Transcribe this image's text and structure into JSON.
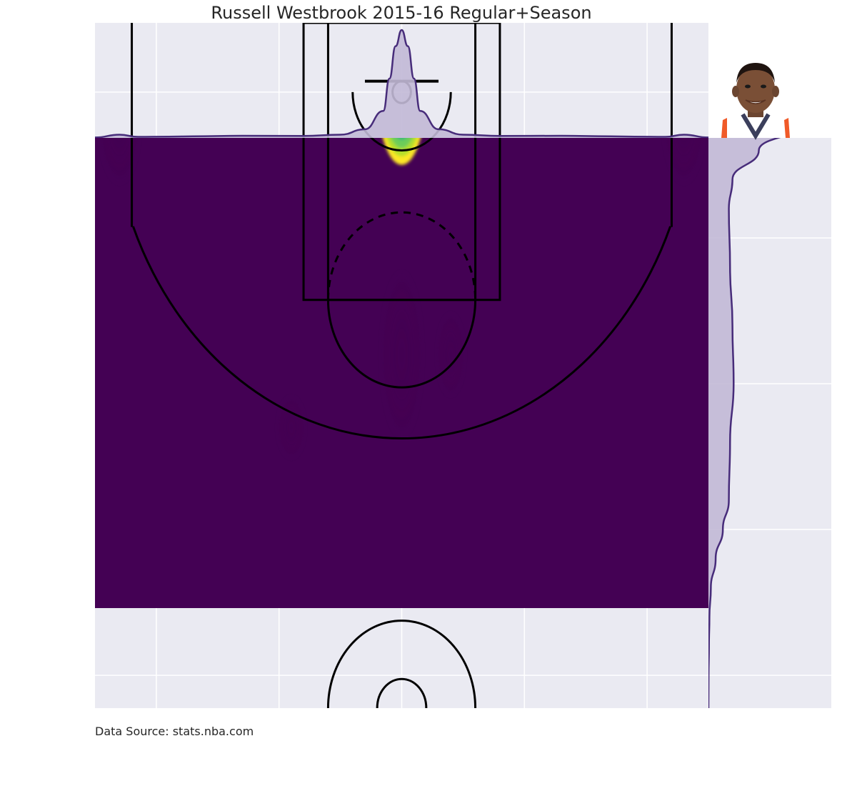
{
  "chart_data": {
    "type": "heatmap",
    "title": "Russell Westbrook 2015-16 Regular+Season",
    "source": "Data Source: stats.nba.com",
    "subtype": "joint KDE shot chart with marginal densities",
    "colormap": "viridis",
    "xlim": [
      -250,
      250
    ],
    "ylim": [
      422.5,
      -47.5
    ],
    "grid": true,
    "x_ticks": [
      -200,
      -100,
      0,
      100,
      200
    ],
    "y_ticks": [
      0,
      100,
      200,
      300,
      400
    ],
    "hotspots": [
      {
        "x": 0,
        "y": 0,
        "weight": 1.0,
        "sx": 7,
        "sy": 35,
        "label": "rim"
      },
      {
        "x": 0,
        "y": 180,
        "weight": 0.05,
        "sx": 6,
        "sy": 40
      },
      {
        "x": 40,
        "y": 180,
        "weight": 0.03,
        "sx": 4,
        "sy": 20
      },
      {
        "x": -230,
        "y": 20,
        "weight": 0.03,
        "sx": 6,
        "sy": 30
      },
      {
        "x": 230,
        "y": 20,
        "weight": 0.03,
        "sx": 6,
        "sy": 30
      },
      {
        "x": -90,
        "y": 230,
        "weight": 0.02,
        "sx": 4,
        "sy": 15
      }
    ],
    "x_marginal": {
      "x": [
        -250,
        -230,
        -215,
        -190,
        -170,
        -130,
        -80,
        -50,
        -30,
        -15,
        -10,
        -5,
        0,
        5,
        10,
        15,
        30,
        50,
        80,
        130,
        170,
        190,
        215,
        230,
        250
      ],
      "density": [
        0.004,
        0.03,
        0.01,
        0.012,
        0.015,
        0.02,
        0.018,
        0.03,
        0.08,
        0.25,
        0.55,
        0.85,
        1.0,
        0.85,
        0.55,
        0.25,
        0.08,
        0.03,
        0.018,
        0.02,
        0.015,
        0.012,
        0.01,
        0.03,
        0.004
      ]
    },
    "y_marginal": {
      "y": [
        -47.5,
        -20,
        -10,
        0,
        10,
        20,
        40,
        60,
        80,
        120,
        160,
        200,
        240,
        280,
        300,
        320,
        340,
        360,
        380,
        400,
        422.5
      ],
      "density": [
        0.01,
        0.2,
        0.6,
        0.95,
        1.0,
        0.85,
        0.42,
        0.2,
        0.17,
        0.18,
        0.2,
        0.21,
        0.18,
        0.17,
        0.12,
        0.06,
        0.02,
        0.008,
        0.004,
        0.001,
        0
      ]
    },
    "colors": {
      "plot_bg": "#eaeaf2",
      "grid": "#ffffff",
      "kde_base": "#440154",
      "marginal_line": "#472c7a",
      "marginal_fill": "#c2b9d6",
      "court_lines": "#000000"
    }
  },
  "player_photo": {
    "description_icon": "player-headshot-icon",
    "jersey_color": "#ffffff",
    "trim_color": "#f05a28",
    "trim_color2": "#3b3f5c"
  }
}
